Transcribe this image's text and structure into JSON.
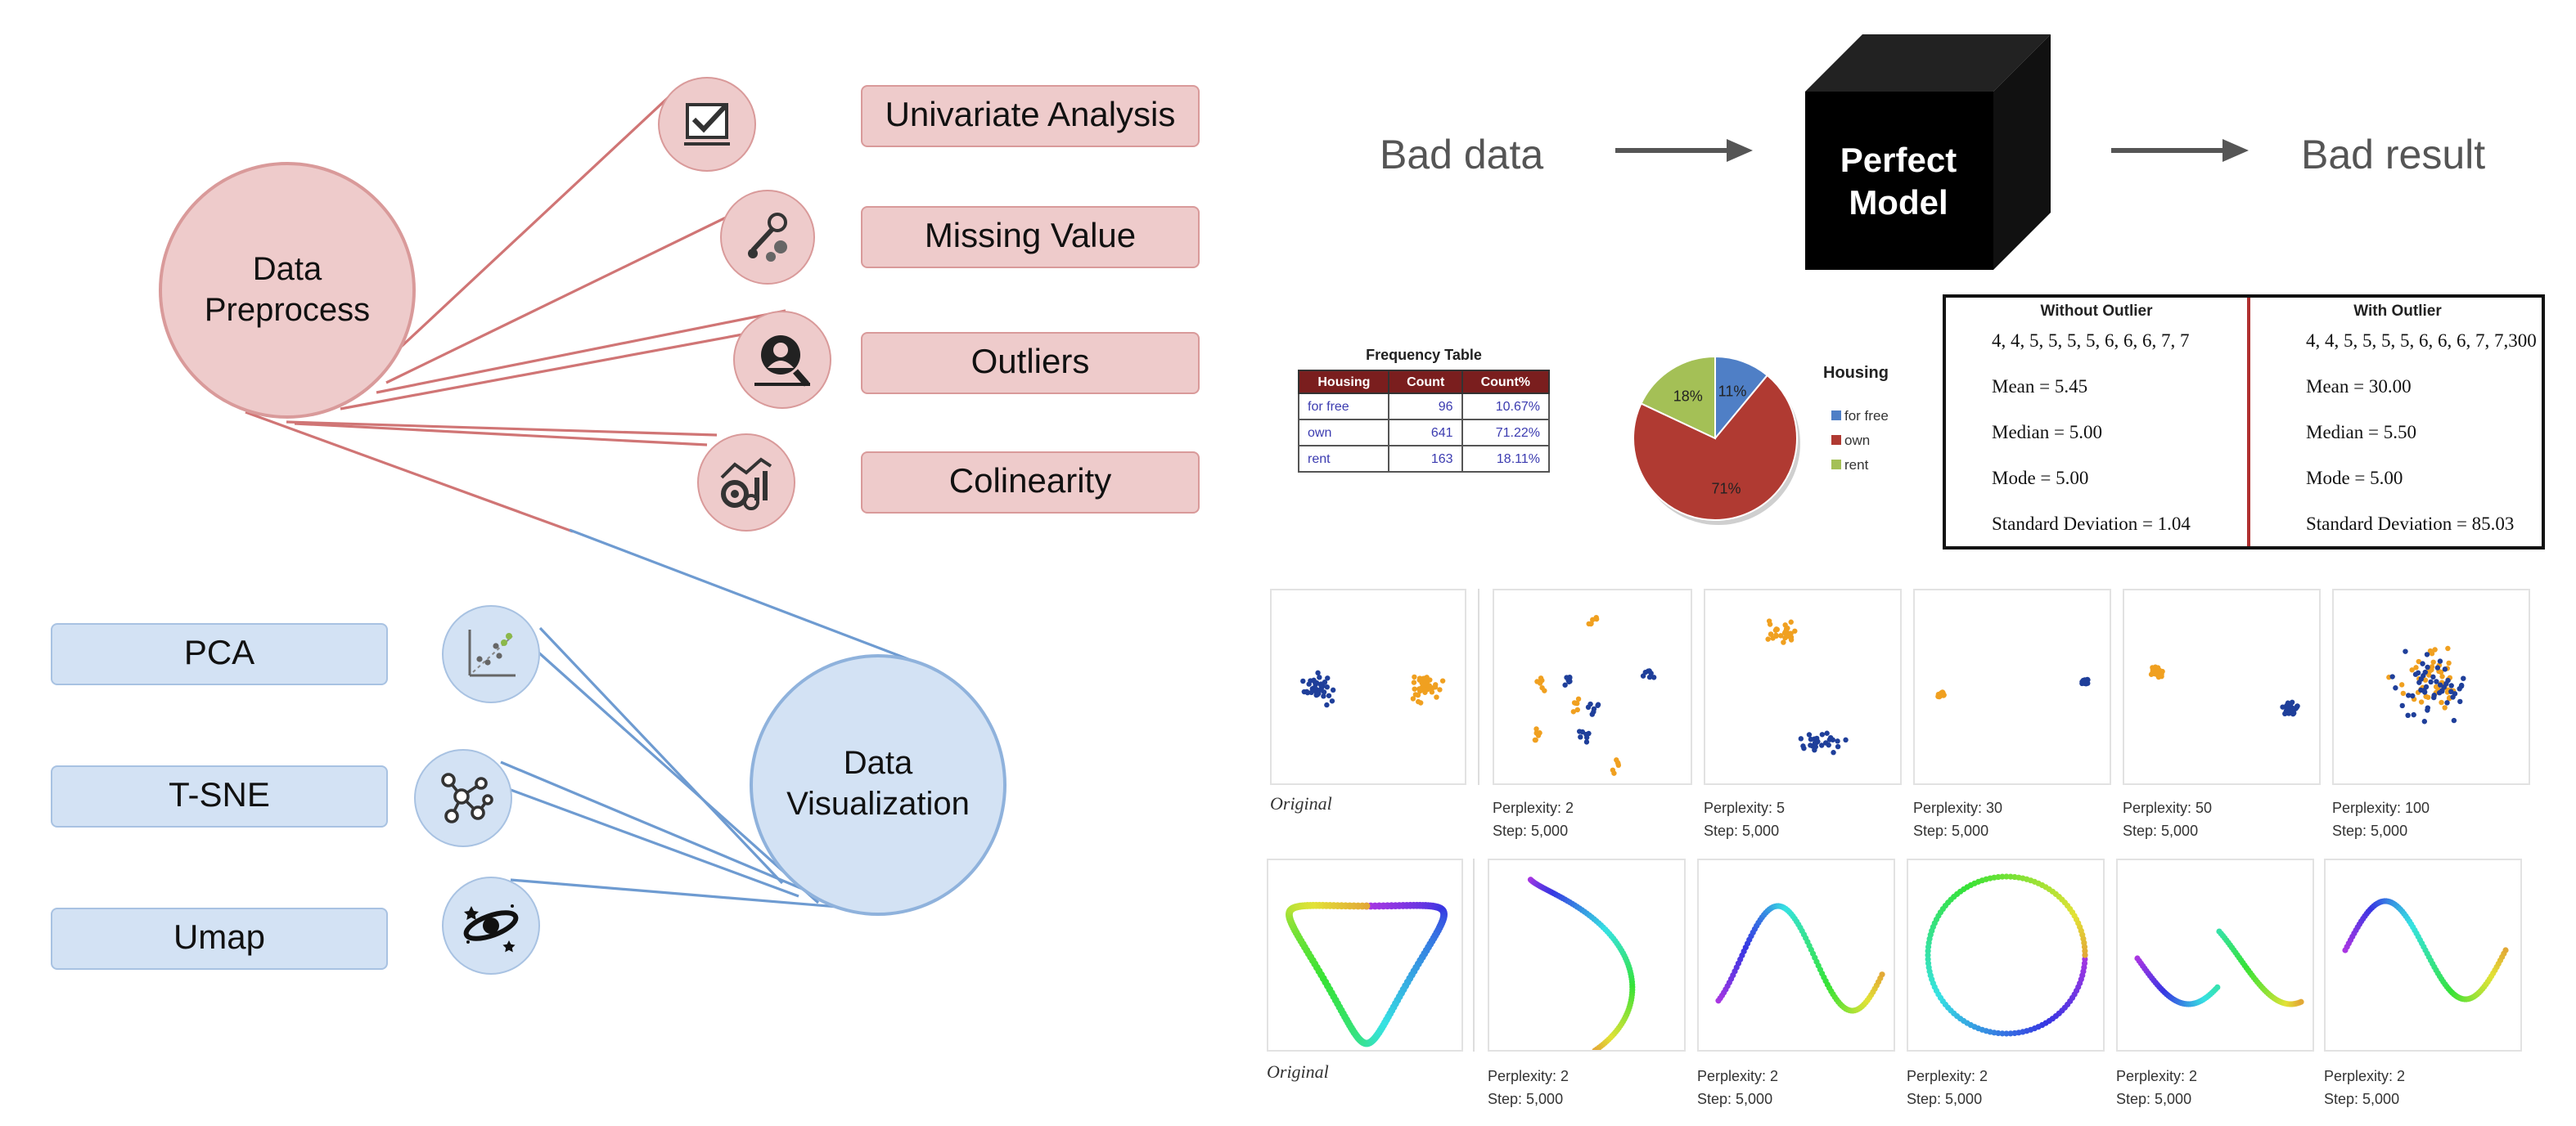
{
  "preprocess": {
    "center_label": "Data Preprocess",
    "items": [
      "Univariate Analysis",
      "Missing Value",
      "Outliers",
      "Colinearity"
    ],
    "icons": [
      "checklist-icon",
      "tools-icon",
      "magnifier-person-icon",
      "chart-gears-icon"
    ]
  },
  "visualization": {
    "center_label": "Data Visualization",
    "items": [
      "PCA",
      "T-SNE",
      "Umap"
    ],
    "icons": [
      "scatter-plot-icon",
      "network-graph-icon",
      "galaxy-icon"
    ]
  },
  "flow": {
    "input": "Bad data",
    "model": "Perfect Model",
    "output": "Bad result"
  },
  "frequency_table": {
    "title": "Frequency Table",
    "headers": [
      "Housing",
      "Count",
      "Count%"
    ],
    "rows": [
      [
        "for free",
        "96",
        "10.67%"
      ],
      [
        "own",
        "641",
        "71.22%"
      ],
      [
        "rent",
        "163",
        "18.11%"
      ]
    ]
  },
  "chart_data": {
    "type": "pie",
    "title": "Housing",
    "categories": [
      "for free",
      "own",
      "rent"
    ],
    "values": [
      11,
      71,
      18
    ],
    "labels": [
      "11%",
      "71%",
      "18%"
    ],
    "colors": [
      "#4f7fc6",
      "#b03a32",
      "#a4c056"
    ],
    "legend": "right"
  },
  "outlier_compare": {
    "without": {
      "title": "Without Outlier",
      "data": "4, 4, 5, 5, 5, 5, 6, 6, 6, 7, 7",
      "mean": "Mean = 5.45",
      "median": "Median = 5.00",
      "mode": "Mode = 5.00",
      "sd": "Standard Deviation = 1.04"
    },
    "with": {
      "title": "With Outlier",
      "data": "4, 4, 5, 5, 5, 5, 6, 6, 6, 7, 7,300",
      "mean": "Mean = 30.00",
      "median": "Median = 5.50",
      "mode": "Mode = 5.00",
      "sd": "Standard Deviation = 85.03"
    }
  },
  "tsne_row1": {
    "original": "Original",
    "panels": [
      {
        "perplexity": "Perplexity: 2",
        "step": "Step: 5,000"
      },
      {
        "perplexity": "Perplexity: 5",
        "step": "Step: 5,000"
      },
      {
        "perplexity": "Perplexity: 30",
        "step": "Step: 5,000"
      },
      {
        "perplexity": "Perplexity: 50",
        "step": "Step: 5,000"
      },
      {
        "perplexity": "Perplexity: 100",
        "step": "Step: 5,000"
      }
    ]
  },
  "tsne_row2": {
    "original": "Original",
    "panels": [
      {
        "perplexity": "Perplexity: 2",
        "step": "Step: 5,000"
      },
      {
        "perplexity": "Perplexity: 2",
        "step": "Step: 5,000"
      },
      {
        "perplexity": "Perplexity: 2",
        "step": "Step: 5,000"
      },
      {
        "perplexity": "Perplexity: 2",
        "step": "Step: 5,000"
      },
      {
        "perplexity": "Perplexity: 2",
        "step": "Step: 5,000"
      }
    ]
  },
  "colors": {
    "preprocess_fill": "#eecbcb",
    "preprocess_line": "#d07575",
    "visual_fill": "#d3e2f4",
    "visual_line": "#6e9bd1",
    "cluster_blue": "#1f3f9a",
    "cluster_orange": "#f0a020"
  }
}
